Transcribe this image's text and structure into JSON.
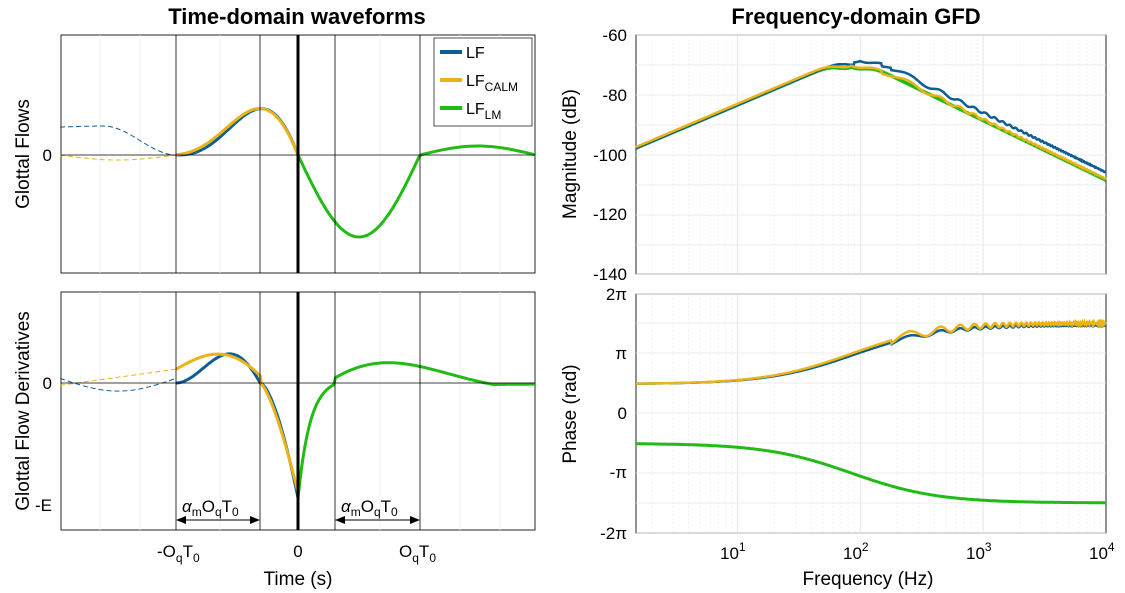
{
  "left_title": "Time-domain waveforms",
  "right_title": "Frequency-domain GFD",
  "colors": {
    "LF": "#0e5e94",
    "LF_CALM": "#eab418",
    "LF_LM": "#22bb16"
  },
  "legend": [
    {
      "key": "LF",
      "base": "LF",
      "sub": ""
    },
    {
      "key": "LF_CALM",
      "base": "LF",
      "sub": "CALM"
    },
    {
      "key": "LF_LM",
      "base": "LF",
      "sub": "LM"
    }
  ],
  "time_axis": {
    "xlabel": "Time (s)",
    "ticks": [
      {
        "base": "-O",
        "sub1": "q",
        "mid": "T",
        "sub2": "0"
      },
      {
        "base": "0",
        "sub1": "",
        "mid": "",
        "sub2": ""
      },
      {
        "base": "O",
        "sub1": "q",
        "mid": "T",
        "sub2": "0"
      }
    ],
    "annotation": {
      "alpha": "α",
      "m": "m",
      "O": "O",
      "q": "q",
      "T": "T",
      "zero": "0"
    }
  },
  "freq_axis": {
    "xlabel": "Frequency (Hz)",
    "tick_base": "10",
    "tick_exps": [
      "1",
      "2",
      "3",
      "4"
    ]
  },
  "chart_data": [
    {
      "type": "line",
      "title": "Time-domain waveforms",
      "ylabel": "Glottal Flows",
      "yticks": [
        "0"
      ],
      "xticks": [
        "-OqT0",
        "0",
        "OqT0"
      ],
      "x": [
        -0.6,
        -0.5,
        -0.4,
        -0.3,
        -0.2,
        -0.1,
        0.0,
        0.1,
        0.2,
        0.3,
        0.4,
        0.5,
        0.6
      ],
      "series": [
        {
          "name": "LF",
          "values": [
            0.0,
            0.3,
            0.7,
            0.94,
            0.62,
            0.0,
            -0.62,
            -0.58,
            -0.3,
            0.0,
            0.09,
            0.05,
            0.0
          ]
        },
        {
          "name": "LF_CALM",
          "values": [
            0.0,
            0.32,
            0.66,
            0.84,
            0.56,
            0.0,
            -0.62,
            -0.58,
            -0.3,
            0.0,
            0.09,
            0.05,
            0.0
          ]
        },
        {
          "name": "LF_LM",
          "values": [
            null,
            null,
            null,
            null,
            null,
            null,
            -0.62,
            -0.58,
            -0.3,
            0.0,
            0.09,
            0.05,
            0.0
          ]
        }
      ]
    },
    {
      "type": "line",
      "xlabel": "Time (s)",
      "ylabel": "Glottal Flow Derivatives",
      "yticks": [
        "0",
        "-E"
      ],
      "xticks": [
        "-OqT0",
        "0",
        "OqT0"
      ],
      "x": [
        -0.6,
        -0.45,
        -0.3,
        -0.15,
        0.0,
        0.15,
        0.3,
        0.45,
        0.6
      ],
      "series": [
        {
          "name": "LF",
          "values": [
            0.0,
            0.2,
            0.45,
            0.0,
            -1.0,
            0.35,
            0.3,
            0.05,
            0.0
          ]
        },
        {
          "name": "LF_CALM",
          "values": [
            0.12,
            0.25,
            0.3,
            0.0,
            -0.95,
            0.35,
            0.3,
            0.05,
            0.0
          ]
        },
        {
          "name": "LF_LM",
          "values": [
            null,
            null,
            null,
            null,
            -1.0,
            0.35,
            0.3,
            0.05,
            0.0
          ]
        }
      ]
    },
    {
      "type": "line",
      "title": "Frequency-domain GFD",
      "ylabel": "Magnitude (dB)",
      "ylim": [
        -140,
        -60
      ],
      "yticks": [
        "-60",
        "-80",
        "-100",
        "-120",
        "-140"
      ],
      "xscale": "log",
      "xlim": [
        1.5,
        10000
      ],
      "x": [
        1.5,
        10,
        50,
        100,
        200,
        500,
        1000,
        10000
      ],
      "series": [
        {
          "name": "LF",
          "values": [
            -101,
            -85,
            -72,
            -68.5,
            -75,
            -85,
            -91,
            -110
          ]
        },
        {
          "name": "LF_CALM",
          "values": [
            -101.5,
            -85.5,
            -72.5,
            -69.5,
            -76,
            -85,
            -91,
            -109.5
          ]
        },
        {
          "name": "LF_LM",
          "values": [
            -102,
            -86,
            -72.5,
            -69.5,
            -76,
            -85,
            -91,
            -110
          ]
        }
      ]
    },
    {
      "type": "line",
      "xlabel": "Frequency (Hz)",
      "ylabel": "Phase (rad)",
      "ylim": [
        -6.283,
        6.283
      ],
      "yticks": [
        "2π",
        "π",
        "0",
        "-π",
        "-2π"
      ],
      "xscale": "log",
      "xlim": [
        1.5,
        10000
      ],
      "x": [
        1.5,
        10,
        30,
        60,
        100,
        200,
        500,
        1000,
        10000
      ],
      "series": [
        {
          "name": "LF",
          "values": [
            1.57,
            1.75,
            2.1,
            2.7,
            3.3,
            4.35,
            4.55,
            4.6,
            4.7
          ]
        },
        {
          "name": "LF_CALM",
          "values": [
            1.57,
            1.75,
            2.1,
            2.65,
            3.25,
            4.15,
            4.5,
            4.6,
            4.8
          ]
        },
        {
          "name": "LF_LM",
          "values": [
            -1.57,
            -1.65,
            -1.85,
            -2.4,
            -3.3,
            -4.1,
            -4.45,
            -4.55,
            -4.7
          ]
        }
      ]
    }
  ]
}
